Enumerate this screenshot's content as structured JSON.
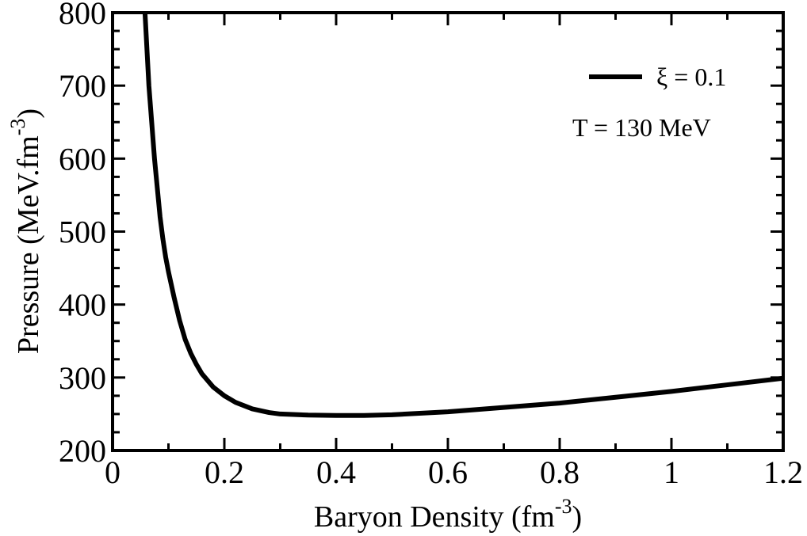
{
  "chart_data": {
    "type": "line",
    "title": "",
    "xlabel": "Baryon Density (fm",
    "xlabel_sup": "-3",
    "xlabel_end": ")",
    "ylabel": "Pressure (MeV.fm",
    "ylabel_sup": "-3",
    "ylabel_end": ")",
    "xlim": [
      0,
      1.2
    ],
    "ylim": [
      200,
      800
    ],
    "xticks": [
      0,
      0.2,
      0.4,
      0.6,
      0.8,
      1.0,
      1.2
    ],
    "xtick_labels": [
      "0",
      "0.2",
      "0.4",
      "0.6",
      "0.8",
      "1",
      "1.2"
    ],
    "yticks": [
      200,
      300,
      400,
      500,
      600,
      700,
      800
    ],
    "ytick_labels": [
      "200",
      "300",
      "400",
      "500",
      "600",
      "700",
      "800"
    ],
    "grid": false,
    "legend_position": "top-right",
    "annotation": "T = 130 MeV",
    "series": [
      {
        "name": "ξ = 0.1",
        "color": "#000000",
        "x": [
          0.058,
          0.065,
          0.07,
          0.075,
          0.08,
          0.085,
          0.09,
          0.095,
          0.1,
          0.11,
          0.12,
          0.13,
          0.14,
          0.15,
          0.16,
          0.18,
          0.2,
          0.22,
          0.25,
          0.28,
          0.3,
          0.35,
          0.4,
          0.45,
          0.5,
          0.6,
          0.7,
          0.8,
          0.9,
          1.0,
          1.1,
          1.2
        ],
        "y": [
          800,
          700,
          650,
          600,
          560,
          520,
          490,
          465,
          445,
          410,
          378,
          352,
          333,
          318,
          305,
          287,
          275,
          266,
          257,
          252,
          250,
          248.5,
          248,
          248,
          249,
          253,
          259,
          265,
          273,
          281,
          290,
          299
        ]
      }
    ]
  }
}
